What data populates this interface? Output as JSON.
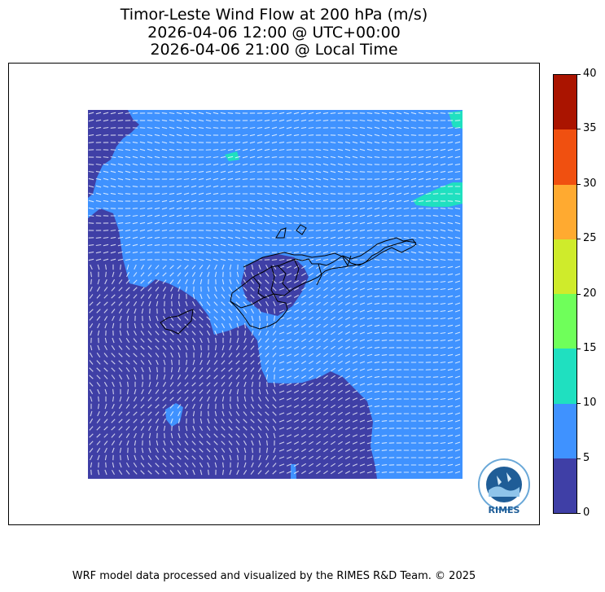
{
  "title": {
    "line1": "Timor-Leste Wind Flow at 200 hPa (m/s)",
    "line2": "2026-04-06 12:00 @ UTC+00:00",
    "line3": "2026-04-06 21:00 @ Local Time"
  },
  "colorbar": {
    "ticks": [
      "0",
      "5",
      "10",
      "15",
      "20",
      "25",
      "30",
      "35",
      "40"
    ],
    "bands": [
      {
        "from": 0,
        "to": 5,
        "color": "#3f3fa6"
      },
      {
        "from": 5,
        "to": 10,
        "color": "#3f92ff"
      },
      {
        "from": 10,
        "to": 15,
        "color": "#1fe0c0"
      },
      {
        "from": 15,
        "to": 20,
        "color": "#6fff5a"
      },
      {
        "from": 20,
        "to": 25,
        "color": "#cfeb2b"
      },
      {
        "from": 25,
        "to": 30,
        "color": "#ffaa30"
      },
      {
        "from": 30,
        "to": 35,
        "color": "#f05010"
      },
      {
        "from": 35,
        "to": 40,
        "color": "#aa1400"
      }
    ]
  },
  "logo": {
    "text": "RIMES"
  },
  "footer": "WRF model data processed and visualized by the RIMES R&D Team. © 2025"
}
